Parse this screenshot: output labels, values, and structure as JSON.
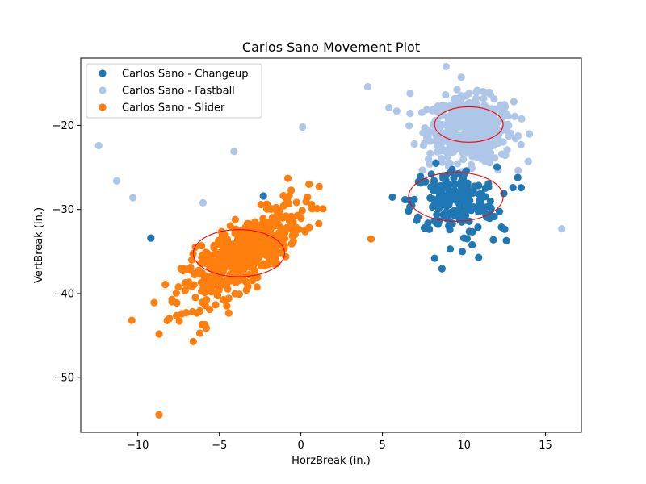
{
  "chart_data": {
    "type": "scatter",
    "title": "Carlos Sano Movement Plot",
    "xlabel": "HorzBreak (in.)",
    "ylabel": "VertBreak (in.)",
    "xlim": [
      -13.5,
      17.2
    ],
    "ylim": [
      -56.5,
      -12.0
    ],
    "x_ticks": [
      -10,
      -5,
      0,
      5,
      10,
      15
    ],
    "y_ticks": [
      -20,
      -30,
      -40,
      -50
    ],
    "grid": false,
    "legend_position": "top-left",
    "series": [
      {
        "name": "Carlos Sano - Changeup",
        "color": "#1f77b4",
        "center": [
          9.4,
          -29.0
        ],
        "spread": [
          1.3,
          2.0
        ],
        "count": 180,
        "points": [
          [
            -9.2,
            -33.4
          ],
          [
            -2.3,
            -28.4
          ],
          [
            6.8,
            -29.5
          ],
          [
            7.1,
            -31.3
          ],
          [
            8.2,
            -35.8
          ],
          [
            8.0,
            -25.8
          ],
          [
            8.6,
            -27.9
          ],
          [
            9.9,
            -35.0
          ],
          [
            10.0,
            -33.4
          ],
          [
            10.5,
            -34.2
          ],
          [
            10.9,
            -35.7
          ],
          [
            11.8,
            -33.6
          ],
          [
            12.6,
            -33.7
          ],
          [
            13.3,
            -26.2
          ],
          [
            13.0,
            -27.4
          ],
          [
            12.3,
            -32.1
          ],
          [
            11.6,
            -30.6
          ]
        ]
      },
      {
        "name": "Carlos Sano - Fastball",
        "color": "#aec7e8",
        "center": [
          10.4,
          -20.5
        ],
        "spread": [
          1.3,
          1.9
        ],
        "count": 520,
        "points": [
          [
            -12.4,
            -22.4
          ],
          [
            -11.3,
            -26.6
          ],
          [
            -10.3,
            -28.6
          ],
          [
            -6.0,
            -29.2
          ],
          [
            -4.1,
            -23.1
          ],
          [
            0.1,
            -20.2
          ],
          [
            4.1,
            -15.4
          ],
          [
            5.4,
            -17.9
          ],
          [
            6.7,
            -16.2
          ],
          [
            7.6,
            -20.3
          ],
          [
            8.9,
            -13.0
          ],
          [
            7.9,
            -24.6
          ],
          [
            16.0,
            -32.3
          ],
          [
            13.5,
            -22.3
          ],
          [
            12.1,
            -25.3
          ]
        ]
      },
      {
        "name": "Carlos Sano - Slider",
        "color": "#ff7f0e",
        "center": [
          -3.6,
          -35.3
        ],
        "spread": [
          1.8,
          2.9
        ],
        "correlation": 0.75,
        "count": 480,
        "points": [
          [
            -8.7,
            -54.4
          ],
          [
            4.3,
            -33.5
          ],
          [
            1.0,
            -29.9
          ],
          [
            0.5,
            -27.0
          ],
          [
            -0.8,
            -26.3
          ],
          [
            -6.6,
            -45.7
          ],
          [
            -6.2,
            -44.7
          ],
          [
            -5.8,
            -44.1
          ],
          [
            -7.3,
            -42.4
          ],
          [
            -8.2,
            -43.2
          ],
          [
            -7.9,
            -40.7
          ]
        ]
      }
    ],
    "ellipses": [
      {
        "series": "Carlos Sano - Changeup",
        "center": [
          9.5,
          -28.5
        ],
        "rx": 2.9,
        "ry": 2.9,
        "color": "#ff0000"
      },
      {
        "series": "Carlos Sano - Fastball",
        "center": [
          10.3,
          -19.9
        ],
        "rx": 2.1,
        "ry": 2.1,
        "color": "#ff0000"
      },
      {
        "series": "Carlos Sano - Slider",
        "center": [
          -3.8,
          -35.2
        ],
        "rx": 2.8,
        "ry": 2.8,
        "color": "#ff0000"
      }
    ]
  }
}
